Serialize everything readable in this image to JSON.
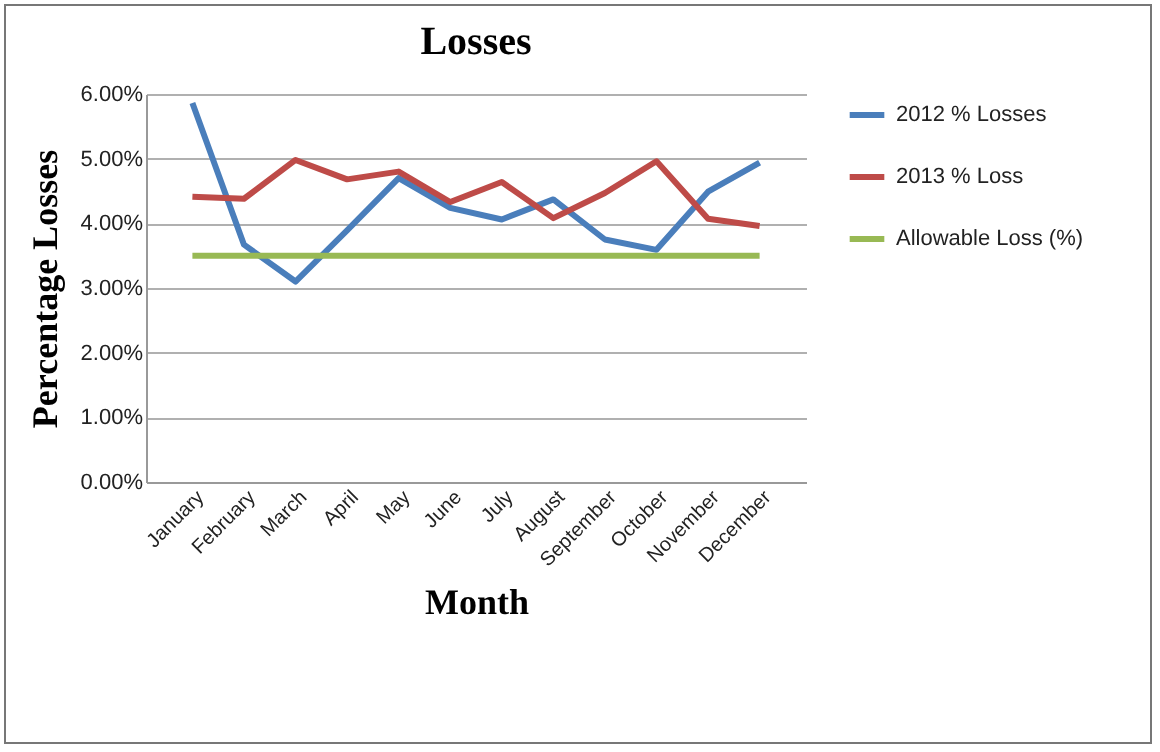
{
  "chart_data": {
    "type": "line",
    "title": "Losses",
    "xlabel": "Month",
    "ylabel": "Percentage Losses",
    "categories": [
      "January",
      "February",
      "March",
      "April",
      "May",
      "June",
      "July",
      "August",
      "September",
      "October",
      "November",
      "December"
    ],
    "series": [
      {
        "name": "2012 % Losses",
        "color": "#4a7ebb",
        "values": [
          5.86,
          3.67,
          3.1,
          3.89,
          4.7,
          4.24,
          4.06,
          4.37,
          3.75,
          3.59,
          4.49,
          4.94
        ]
      },
      {
        "name": "2013 % Loss",
        "color": "#be4b48",
        "values": [
          4.41,
          4.38,
          4.98,
          4.68,
          4.8,
          4.33,
          4.64,
          4.08,
          4.47,
          4.96,
          4.07,
          3.96
        ]
      },
      {
        "name": "Allowable Loss (%)",
        "color": "#98b954",
        "values": [
          3.5,
          3.5,
          3.5,
          3.5,
          3.5,
          3.5,
          3.5,
          3.5,
          3.5,
          3.5,
          3.5,
          3.5
        ]
      }
    ],
    "ylim": [
      0,
      6
    ],
    "yticks": [
      {
        "value": 0,
        "label": "0.00%"
      },
      {
        "value": 1,
        "label": "1.00%"
      },
      {
        "value": 2,
        "label": "2.00%"
      },
      {
        "value": 3,
        "label": "3.00%"
      },
      {
        "value": 4,
        "label": "4.00%"
      },
      {
        "value": 5,
        "label": "5.00%"
      },
      {
        "value": 6,
        "label": "6.00%"
      }
    ],
    "grid": "y",
    "legend": "right",
    "marker": "none",
    "line_style": "solid"
  }
}
